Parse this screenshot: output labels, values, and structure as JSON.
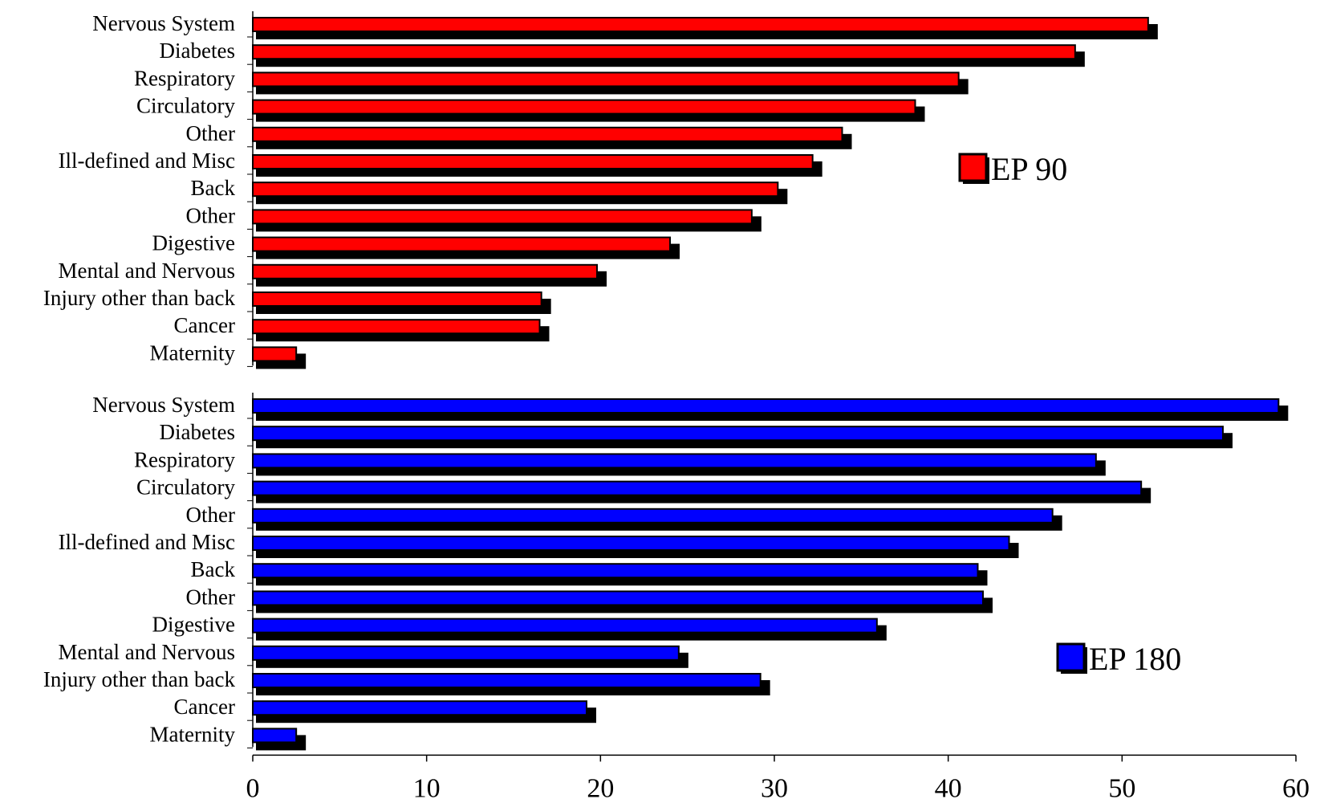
{
  "chart_data": [
    {
      "type": "bar",
      "orientation": "horizontal",
      "categories": [
        "Nervous System",
        "Diabetes",
        "Respiratory",
        "Circulatory",
        "Other",
        "Ill-defined and Misc",
        "Back",
        "Other",
        "Digestive",
        "Mental and Nervous",
        "Injury other than back",
        "Cancer",
        "Maternity"
      ],
      "series": [
        {
          "name": "EP 90",
          "values": [
            51.5,
            47.3,
            40.6,
            38.1,
            33.9,
            32.2,
            30.2,
            28.7,
            24.0,
            19.8,
            16.6,
            16.5,
            2.5
          ],
          "color": "#ff0000"
        }
      ],
      "xlim": [
        0,
        60
      ],
      "legend_position": "right",
      "shadow": true
    },
    {
      "type": "bar",
      "orientation": "horizontal",
      "categories": [
        "Nervous System",
        "Diabetes",
        "Respiratory",
        "Circulatory",
        "Other",
        "Ill-defined and Misc",
        "Back",
        "Other",
        "Digestive",
        "Mental and Nervous",
        "Injury other than back",
        "Cancer",
        "Maternity"
      ],
      "series": [
        {
          "name": "EP 180",
          "values": [
            59.0,
            55.8,
            48.5,
            51.1,
            46.0,
            43.5,
            41.7,
            42.0,
            35.9,
            24.5,
            29.2,
            19.2,
            2.5
          ],
          "color": "#0000ff"
        }
      ],
      "xlim": [
        0,
        60
      ],
      "xticks": [
        0,
        10,
        20,
        30,
        40,
        50,
        60
      ],
      "legend_position": "bottom-right",
      "shadow": true
    }
  ]
}
